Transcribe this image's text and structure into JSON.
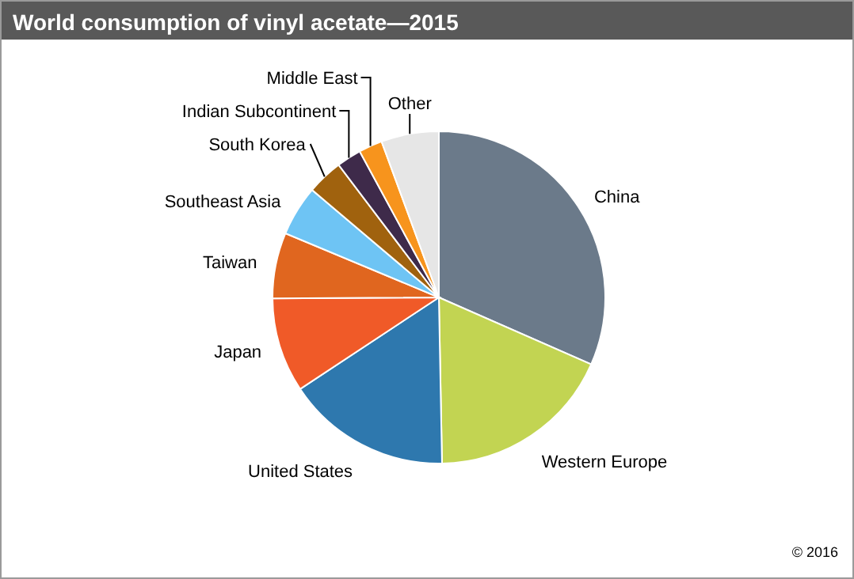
{
  "chart_data": {
    "type": "pie",
    "title": "World consumption of vinyl acetate—2015",
    "categories": [
      "China",
      "Western Europe",
      "United States",
      "Japan",
      "Taiwan",
      "Southeast Asia",
      "South Korea",
      "Indian Subcontinent",
      "Middle East",
      "Other"
    ],
    "values": [
      31.6,
      18.1,
      16,
      9.2,
      6.4,
      4.9,
      3.5,
      2.4,
      2.3,
      5.6
    ],
    "colors": [
      "#6b7a8a",
      "#c2d452",
      "#2e78ae",
      "#f05a28",
      "#e0661f",
      "#6ec4f4",
      "#a0620e",
      "#3e2a4a",
      "#f7941d",
      "#e6e6e6"
    ],
    "annotations": [
      "© 2016"
    ]
  }
}
